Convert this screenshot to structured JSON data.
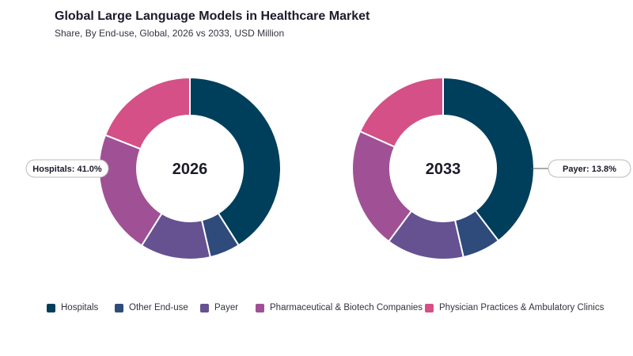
{
  "header": {
    "title": "Global Large Language Models in Healthcare Market",
    "subtitle": "Share, By End-use, Global, 2026 vs 2033, USD Million"
  },
  "colors": {
    "Hospitals": "#003f5c",
    "Other End-use": "#2f4b7c",
    "Payer": "#665191",
    "Pharmaceutical & Biotech Companies": "#a05195",
    "Physician Practices & Ambulatory Clinics": "#d45087"
  },
  "chart_data": [
    {
      "type": "pie",
      "center_label": "2026",
      "categories": [
        "Hospitals",
        "Other End-use",
        "Payer",
        "Pharmaceutical & Biotech Companies",
        "Physician Practices & Ambulatory Clinics"
      ],
      "values": [
        41.0,
        5.4,
        12.5,
        22.1,
        19.0
      ],
      "callout": {
        "text": "Hospitals: 41.0%",
        "category": "Hospitals",
        "side": "left"
      }
    },
    {
      "type": "pie",
      "center_label": "2033",
      "categories": [
        "Hospitals",
        "Other End-use",
        "Payer",
        "Pharmaceutical & Biotech Companies",
        "Physician Practices & Ambulatory Clinics"
      ],
      "values": [
        39.6,
        6.8,
        13.8,
        21.5,
        18.3
      ],
      "callout": {
        "text": "Payer: 13.8%",
        "category": "Payer",
        "side": "right"
      }
    }
  ],
  "legend": [
    "Hospitals",
    "Other End-use",
    "Payer",
    "Pharmaceutical & Biotech Companies",
    "Physician Practices & Ambulatory Clinics"
  ]
}
